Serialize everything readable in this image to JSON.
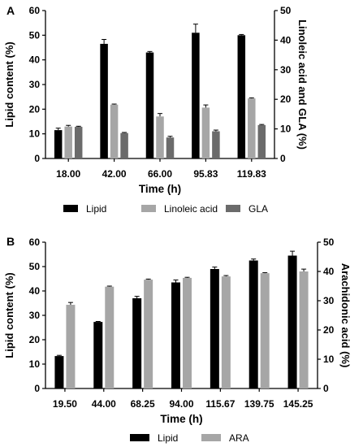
{
  "chart_data": [
    {
      "panel": "A",
      "type": "bar",
      "categories": [
        "18.00",
        "42.00",
        "66.00",
        "95.83",
        "119.83"
      ],
      "xlabel": "Time (h)",
      "ylabel": "Lipid content (%)",
      "y2label": "Linoleic acid and GLA (%)",
      "ylim": [
        0,
        60
      ],
      "y2lim": [
        0,
        50
      ],
      "yticks": [
        "0",
        "10",
        "20",
        "30",
        "40",
        "50",
        "60"
      ],
      "y2ticks": [
        "0",
        "10",
        "20",
        "30",
        "40",
        "50"
      ],
      "series": [
        {
          "name": "Lipid",
          "axis": "left",
          "color": "#000000",
          "values": [
            11.5,
            46.5,
            43.0,
            51.0,
            50.0
          ],
          "errors": [
            0.8,
            1.8,
            0.4,
            3.5,
            0.3
          ]
        },
        {
          "name": "Linoleic acid",
          "axis": "right",
          "color": "#a6a6a6",
          "values": [
            10.8,
            18.2,
            14.2,
            17.2,
            20.3
          ],
          "errors": [
            0.4,
            0.2,
            1.0,
            0.9,
            0.2
          ]
        },
        {
          "name": "GLA",
          "axis": "right",
          "color": "#6b6b6b",
          "values": [
            10.7,
            8.6,
            7.1,
            9.2,
            11.3
          ],
          "errors": [
            0.2,
            0.2,
            0.4,
            0.4,
            0.2
          ]
        }
      ]
    },
    {
      "panel": "B",
      "type": "bar",
      "categories": [
        "19.50",
        "44.00",
        "68.25",
        "94.00",
        "115.67",
        "139.75",
        "145.25"
      ],
      "xlabel": "Time (h)",
      "ylabel": "Lipid content (%)",
      "y2label": "Arachidonic acid (%)",
      "ylim": [
        0,
        60
      ],
      "y2lim": [
        0,
        50
      ],
      "yticks": [
        "0",
        "10",
        "20",
        "30",
        "40",
        "50",
        "60"
      ],
      "y2ticks": [
        "0",
        "10",
        "20",
        "30",
        "40",
        "50"
      ],
      "series": [
        {
          "name": "Lipid",
          "axis": "left",
          "color": "#000000",
          "values": [
            13.3,
            27.3,
            37.0,
            43.5,
            49.0,
            52.5,
            54.5
          ],
          "errors": [
            0.3,
            0.2,
            0.8,
            1.0,
            0.8,
            0.6,
            1.8
          ]
        },
        {
          "name": "ARA",
          "axis": "right",
          "color": "#a6a6a6",
          "values": [
            28.6,
            34.8,
            37.2,
            37.8,
            38.3,
            39.4,
            40.0
          ],
          "errors": [
            0.8,
            0.2,
            0.2,
            0.2,
            0.3,
            0.2,
            0.8
          ]
        }
      ]
    }
  ]
}
